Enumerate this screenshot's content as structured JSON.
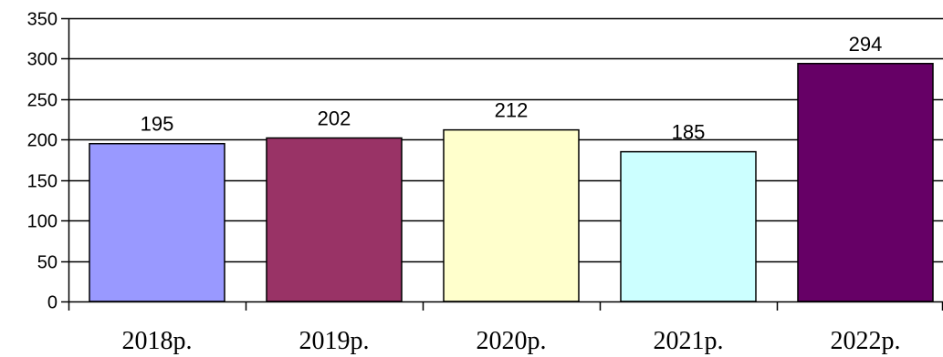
{
  "chart_data": {
    "type": "bar",
    "categories": [
      "2018р.",
      "2019р.",
      "2020р.",
      "2021р.",
      "2022р."
    ],
    "values": [
      195,
      202,
      212,
      185,
      294
    ],
    "data_labels": [
      "195",
      "202",
      "212",
      "185",
      "294"
    ],
    "colors": [
      "#9999FF",
      "#993366",
      "#FFFFCC",
      "#CCFFFF",
      "#660066"
    ],
    "title": "",
    "xlabel": "",
    "ylabel": "",
    "ylim": [
      0,
      350
    ],
    "yticks": [
      "0",
      "50",
      "100",
      "150",
      "200",
      "250",
      "300",
      "350"
    ],
    "grid": true,
    "legend": "none"
  }
}
